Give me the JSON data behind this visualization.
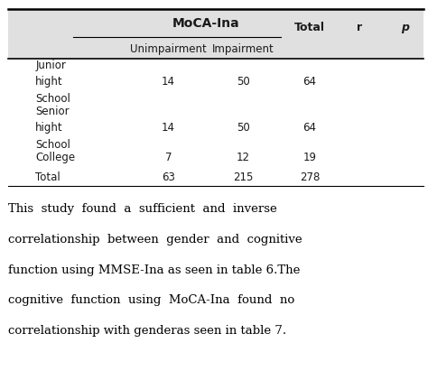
{
  "header_moca": "MoCA-Ina",
  "col_headers": [
    "Unimpairment",
    "Impairment"
  ],
  "extra_headers": [
    "Total",
    "r",
    "p"
  ],
  "rows": [
    {
      "label": [
        "Junior",
        "hight",
        "School"
      ],
      "unimpairment": "14",
      "impairment": "50",
      "total": "64"
    },
    {
      "label": [
        "Senior",
        "hight",
        "School"
      ],
      "unimpairment": "14",
      "impairment": "50",
      "total": "64"
    },
    {
      "label": [
        "College"
      ],
      "unimpairment": "7",
      "impairment": "12",
      "total": "19"
    },
    {
      "label": [
        "Total"
      ],
      "unimpairment": "63",
      "impairment": "215",
      "total": "278"
    }
  ],
  "footnote_lines": [
    "This  study  found  a  sufficient  and  inverse",
    "correlationship  between  gender  and  cognitive",
    "function using MMSE-Ina as seen in table 6.The",
    "cognitive  function  using  MoCA-Ina  found  no",
    "correlationship with genderas seen in table 7."
  ],
  "bg_color": "#ffffff",
  "text_color": "#1a1a1a",
  "header_bg": "#e0e0e0",
  "line_color": "#000000",
  "table_font_size": 8.5,
  "footnote_font_size": 9.5,
  "col_x": {
    "label": 0.095,
    "unimpairment": 0.385,
    "impairment": 0.565,
    "total": 0.725,
    "r": 0.845,
    "p": 0.955
  }
}
